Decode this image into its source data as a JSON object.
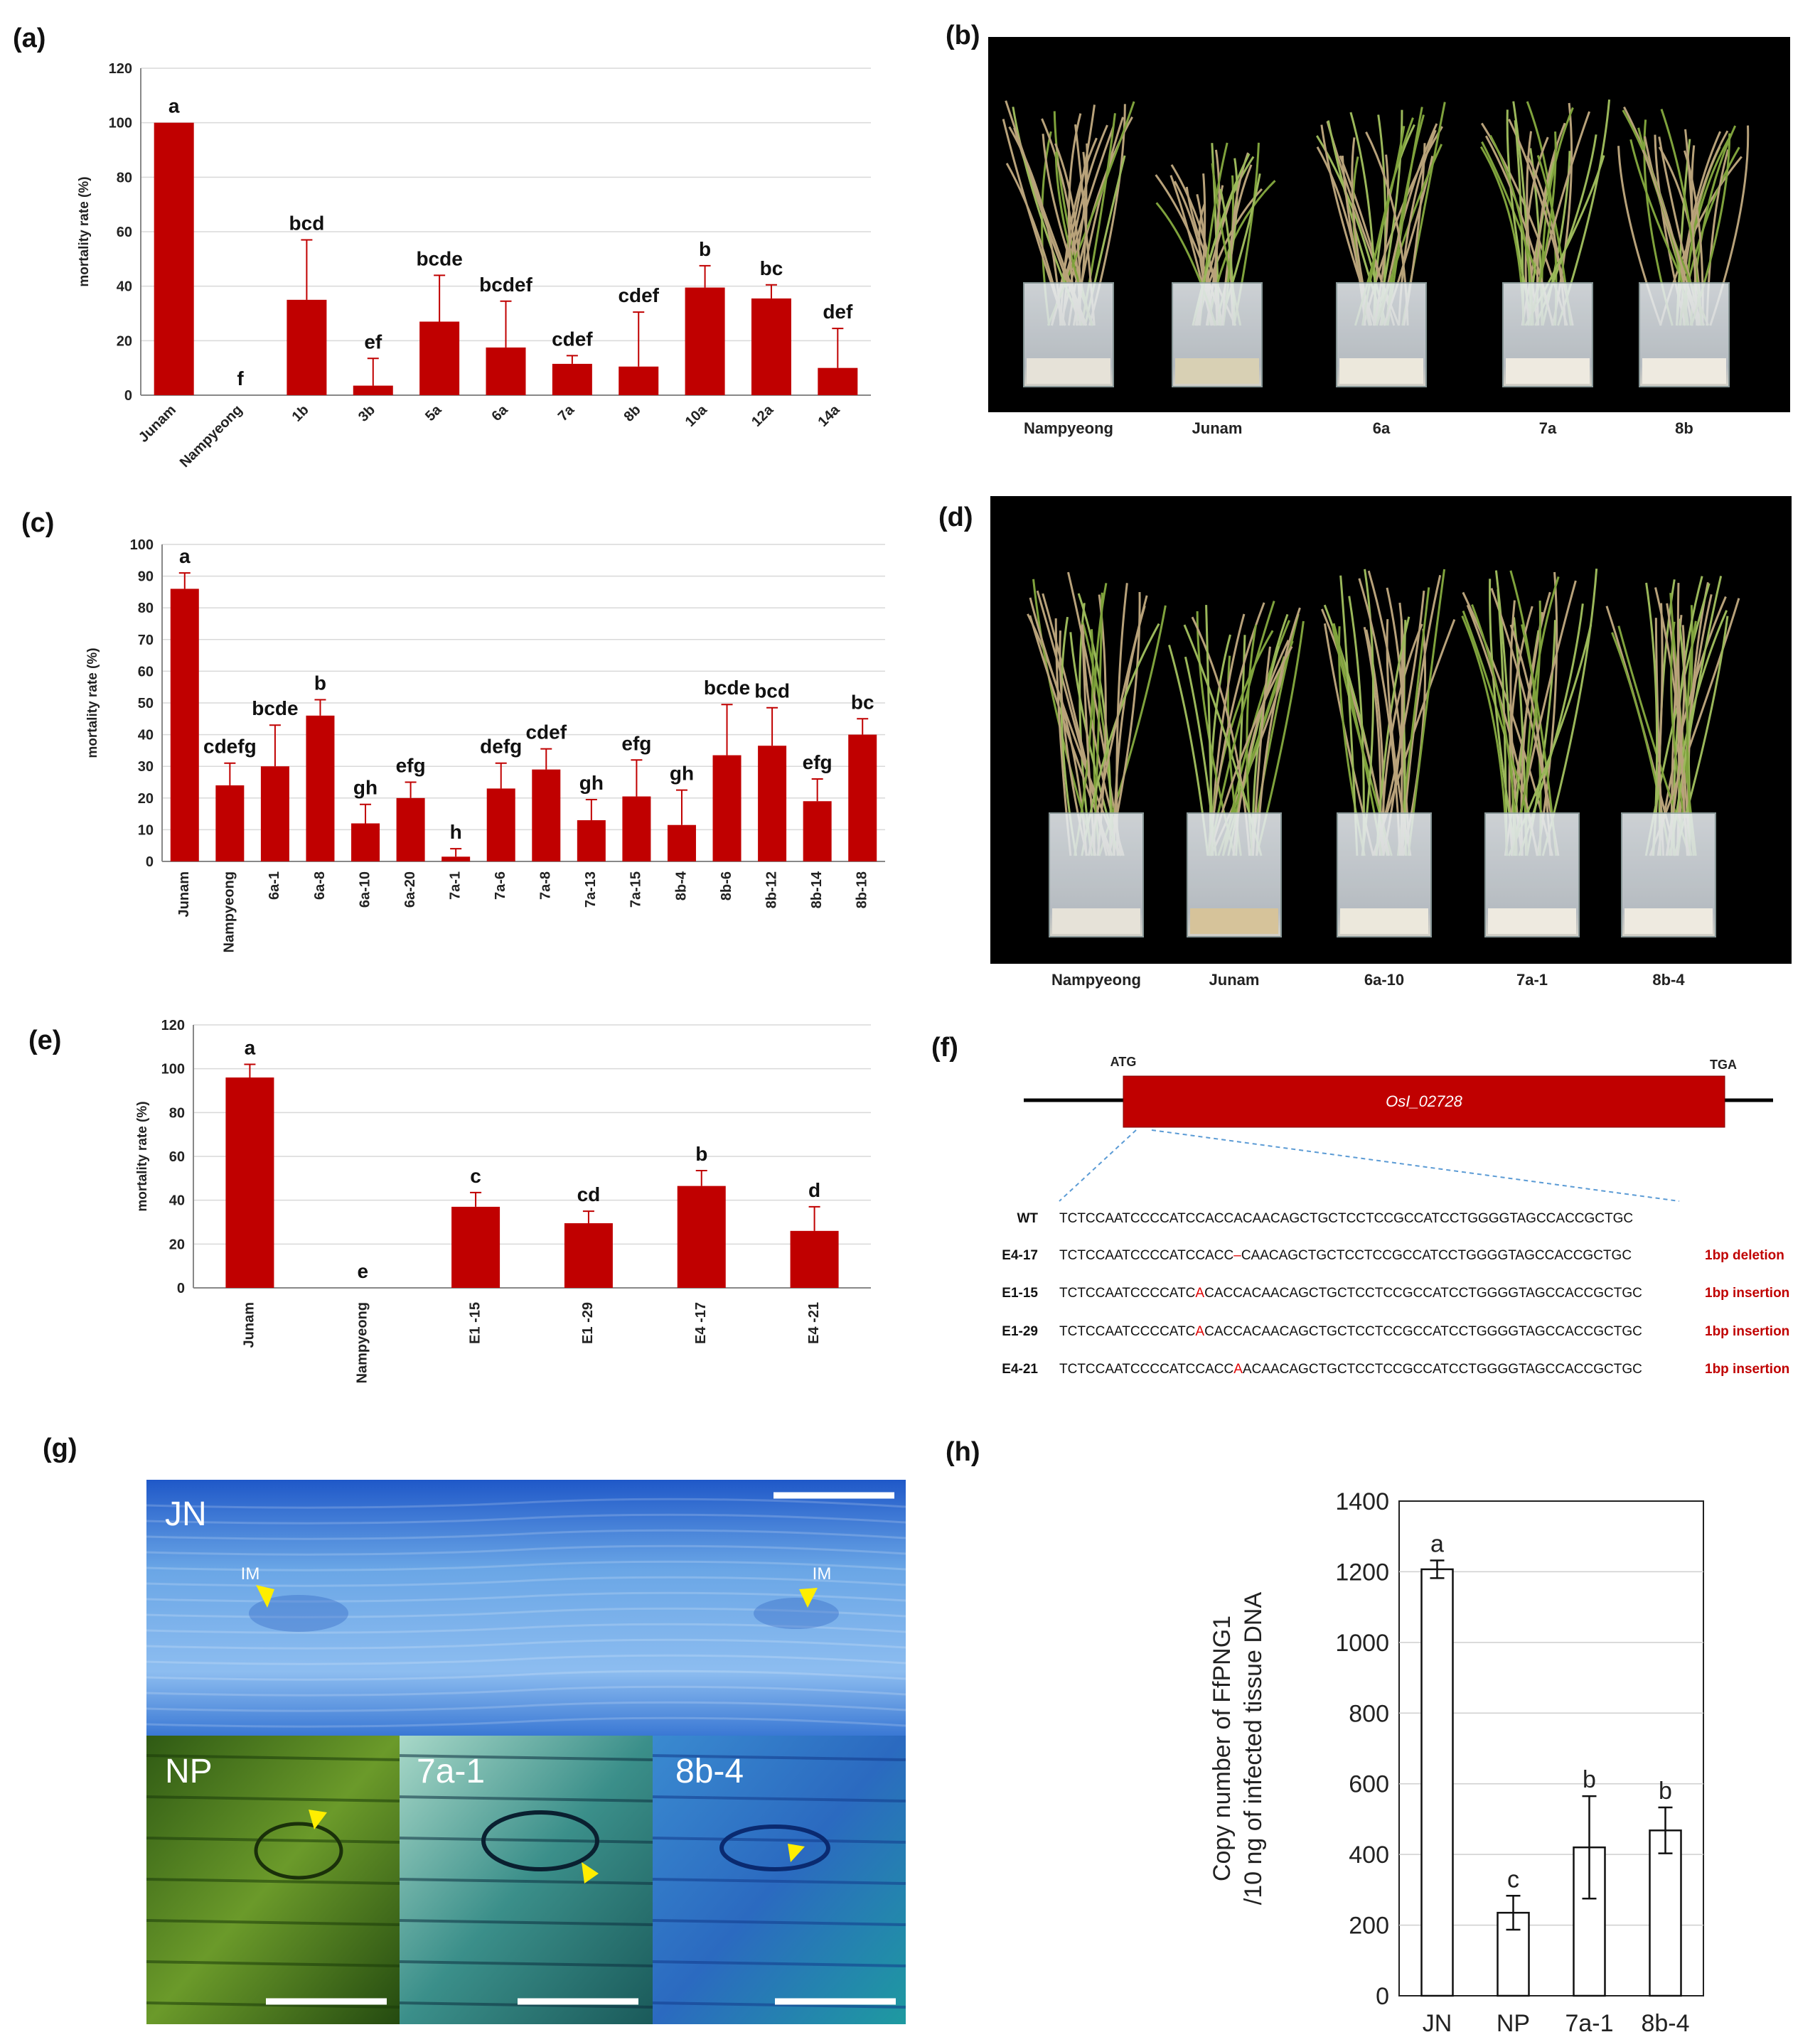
{
  "panels": {
    "a": "(a)",
    "b": "(b)",
    "c": "(c)",
    "d": "(d)",
    "e": "(e)",
    "f": "(f)",
    "g": "(g)",
    "h": "(h)"
  },
  "colors": {
    "bar": "#c00000",
    "photo_bg": "#000000"
  },
  "chart_data": [
    {
      "id": "a",
      "type": "bar",
      "ylabel": "mortality rate (%)",
      "ylim": [
        0,
        120
      ],
      "yticks": [
        0,
        20,
        40,
        60,
        80,
        100,
        120
      ],
      "categories": [
        "Junam",
        "Nampyeong",
        "1b",
        "3b",
        "5a",
        "6a",
        "7a",
        "8b",
        "10a",
        "12a",
        "14a"
      ],
      "values": [
        100,
        0,
        35,
        3.5,
        27,
        17.5,
        11.5,
        10.5,
        39.5,
        35.5,
        10
      ],
      "errors": [
        0,
        0,
        22,
        10,
        17,
        17,
        3,
        20,
        8,
        5,
        14.5
      ],
      "letters": [
        "a",
        "f",
        "bcd",
        "ef",
        "bcde",
        "bcdef",
        "cdef",
        "cdef",
        "b",
        "bc",
        "def"
      ]
    },
    {
      "id": "c",
      "type": "bar",
      "ylabel": "mortality rate (%)",
      "ylim": [
        0,
        100
      ],
      "yticks": [
        0,
        10,
        20,
        30,
        40,
        50,
        60,
        70,
        80,
        90,
        100
      ],
      "categories": [
        "Junam",
        "Nampyeong",
        "6a-1",
        "6a-8",
        "6a-10",
        "6a-20",
        "7a-1",
        "7a-6",
        "7a-8",
        "7a-13",
        "7a-15",
        "8b-4",
        "8b-6",
        "8b-12",
        "8b-14",
        "8b-18"
      ],
      "values": [
        86,
        24,
        30,
        46,
        12,
        20,
        1.5,
        23,
        29,
        13,
        20.5,
        11.5,
        33.5,
        36.5,
        19,
        40
      ],
      "errors": [
        5,
        7,
        13,
        5,
        6,
        5,
        2.5,
        8,
        6.5,
        6.5,
        11.5,
        11,
        16,
        12,
        7,
        5
      ],
      "letters": [
        "a",
        "cdefg",
        "bcde",
        "b",
        "gh",
        "efg",
        "h",
        "defg",
        "cdef",
        "gh",
        "efg",
        "gh",
        "bcde",
        "bcd",
        "efg",
        "bc"
      ]
    },
    {
      "id": "e",
      "type": "bar",
      "ylabel": "mortality rate (%)",
      "ylim": [
        0,
        120
      ],
      "yticks": [
        0,
        20,
        40,
        60,
        80,
        100,
        120
      ],
      "categories": [
        "Junam",
        "Nampyeong",
        "E1 -15",
        "E1 -29",
        "E4 -17",
        "E4 -21"
      ],
      "values": [
        96,
        0,
        37,
        29.5,
        46.5,
        26
      ],
      "errors": [
        6,
        0,
        6.5,
        5.5,
        7,
        11
      ],
      "letters": [
        "a",
        "e",
        "c",
        "cd",
        "b",
        "d"
      ]
    },
    {
      "id": "h",
      "type": "bar",
      "ylabel_line1": "Copy number of FfPNG1",
      "ylabel_line2": "/10 ng of infected tissue DNA",
      "ylim": [
        0,
        1400
      ],
      "yticks": [
        0,
        200,
        400,
        600,
        800,
        1000,
        1200,
        1400
      ],
      "categories": [
        "JN",
        "NP",
        "7a-1",
        "8b-4"
      ],
      "values": [
        1207,
        235,
        420,
        468
      ],
      "errors": [
        25,
        48,
        145,
        65
      ],
      "letters": [
        "a",
        "c",
        "b",
        "b"
      ]
    }
  ],
  "photo_b": {
    "labels": [
      "Nampyeong",
      "Junam",
      "6a",
      "7a",
      "8b"
    ]
  },
  "photo_d": {
    "labels": [
      "Nampyeong",
      "Junam",
      "6a-10",
      "7a-1",
      "8b-4"
    ]
  },
  "gene": {
    "name": "OsI_02728",
    "start": "ATG",
    "stop": "TGA",
    "rows": [
      {
        "name": "WT",
        "seq": "TCTCCAATCCCCATCCACCACAACAGCTGCTCCTCCGCCATCCTGGGGTAGCCACCGCTGC",
        "note": ""
      },
      {
        "name": "E4-17",
        "pre": "TCTCCAATCCCCATCCACC",
        "mut": "–",
        "post": "CAACAGCTGCTCCTCCGCCATCCTGGGGTAGCCACCGCTGC",
        "note": "1bp deletion"
      },
      {
        "name": "E1-15",
        "pre": "TCTCCAATCCCCATC",
        "mut": "A",
        "post": "CACCACAACAGCTGCTCCTCCGCCATCCTGGGGTAGCCACCGCTGC",
        "note": "1bp insertion"
      },
      {
        "name": "E1-29",
        "pre": "TCTCCAATCCCCATC",
        "mut": "A",
        "post": "CACCACAACAGCTGCTCCTCCGCCATCCTGGGGTAGCCACCGCTGC",
        "note": "1bp insertion"
      },
      {
        "name": "E4-21",
        "pre": "TCTCCAATCCCCATCCACC",
        "mut": "A",
        "post": "ACAACAGCTGCTCCTCCGCCATCCTGGGGTAGCCACCGCTGC",
        "note": "1bp insertion"
      }
    ]
  },
  "micro": {
    "jn": "JN",
    "np": "NP",
    "a71": "7a-1",
    "b84": "8b-4",
    "im": "IM"
  }
}
